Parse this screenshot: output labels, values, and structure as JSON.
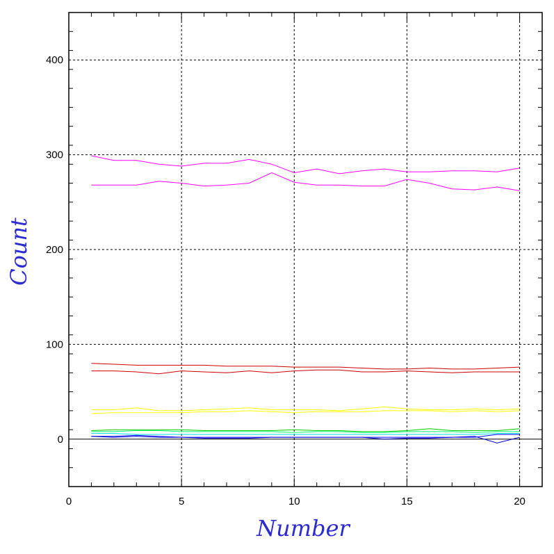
{
  "chart_data": {
    "type": "line",
    "title": "",
    "xlabel": "Number",
    "ylabel": "Count",
    "xlim": [
      0,
      21
    ],
    "ylim": [
      -50,
      450
    ],
    "x_ticks": [
      0,
      5,
      10,
      15,
      20
    ],
    "y_ticks": [
      0,
      100,
      200,
      300,
      400
    ],
    "grid": true,
    "label_color": "#2b2bd0",
    "x": [
      1,
      2,
      3,
      4,
      5,
      6,
      7,
      8,
      9,
      10,
      11,
      12,
      13,
      14,
      15,
      16,
      17,
      18,
      19,
      20
    ],
    "series": [
      {
        "color": "#ff00ff",
        "values": [
          299,
          294,
          294,
          290,
          288,
          291,
          291,
          295,
          290,
          281,
          285,
          280,
          283,
          285,
          282,
          282,
          283,
          283,
          282,
          286
        ]
      },
      {
        "color": "#ff00ff",
        "values": [
          268,
          268,
          268,
          272,
          270,
          267,
          268,
          270,
          281,
          271,
          268,
          268,
          267,
          267,
          274,
          270,
          264,
          263,
          266,
          262
        ]
      },
      {
        "color": "#cc0000",
        "values": [
          80,
          79,
          78,
          78,
          78,
          78,
          77,
          77,
          77,
          76,
          76,
          76,
          75,
          74,
          74,
          75,
          74,
          74,
          75,
          76
        ]
      },
      {
        "color": "#cc0000",
        "values": [
          72,
          72,
          71,
          69,
          72,
          71,
          70,
          72,
          70,
          72,
          73,
          73,
          71,
          71,
          72,
          71,
          70,
          71,
          71,
          71
        ]
      },
      {
        "color": "#ffff00",
        "values": [
          31,
          31,
          33,
          30,
          30,
          31,
          32,
          33,
          31,
          31,
          31,
          30,
          32,
          34,
          32,
          31,
          31,
          32,
          31,
          32
        ]
      },
      {
        "color": "#ffff00",
        "values": [
          27,
          28,
          28,
          28,
          28,
          29,
          29,
          30,
          29,
          28,
          29,
          29,
          29,
          30,
          30,
          30,
          29,
          30,
          29,
          30
        ]
      },
      {
        "color": "#00cc00",
        "values": [
          9,
          10,
          10,
          10,
          10,
          9,
          9,
          9,
          9,
          10,
          9,
          9,
          8,
          8,
          9,
          11,
          9,
          9,
          9,
          11
        ]
      },
      {
        "color": "#00ff66",
        "values": [
          8,
          8,
          9,
          9,
          8,
          8,
          8,
          8,
          8,
          7,
          8,
          8,
          7,
          7,
          8,
          8,
          8,
          7,
          8,
          8
        ]
      },
      {
        "color": "#00dddd",
        "values": [
          6,
          6,
          5,
          5,
          5,
          5,
          5,
          5,
          5,
          5,
          5,
          5,
          5,
          5,
          5,
          5,
          5,
          5,
          6,
          6
        ]
      },
      {
        "color": "#0000ff",
        "values": [
          3,
          3,
          4,
          3,
          2,
          2,
          2,
          2,
          2,
          2,
          2,
          2,
          2,
          2,
          2,
          2,
          2,
          2,
          5,
          5
        ]
      },
      {
        "color": "#0000cc",
        "values": [
          3,
          2,
          3,
          2,
          2,
          1,
          1,
          1,
          2,
          2,
          2,
          2,
          2,
          0,
          1,
          1,
          2,
          3,
          -4,
          2
        ]
      }
    ]
  }
}
